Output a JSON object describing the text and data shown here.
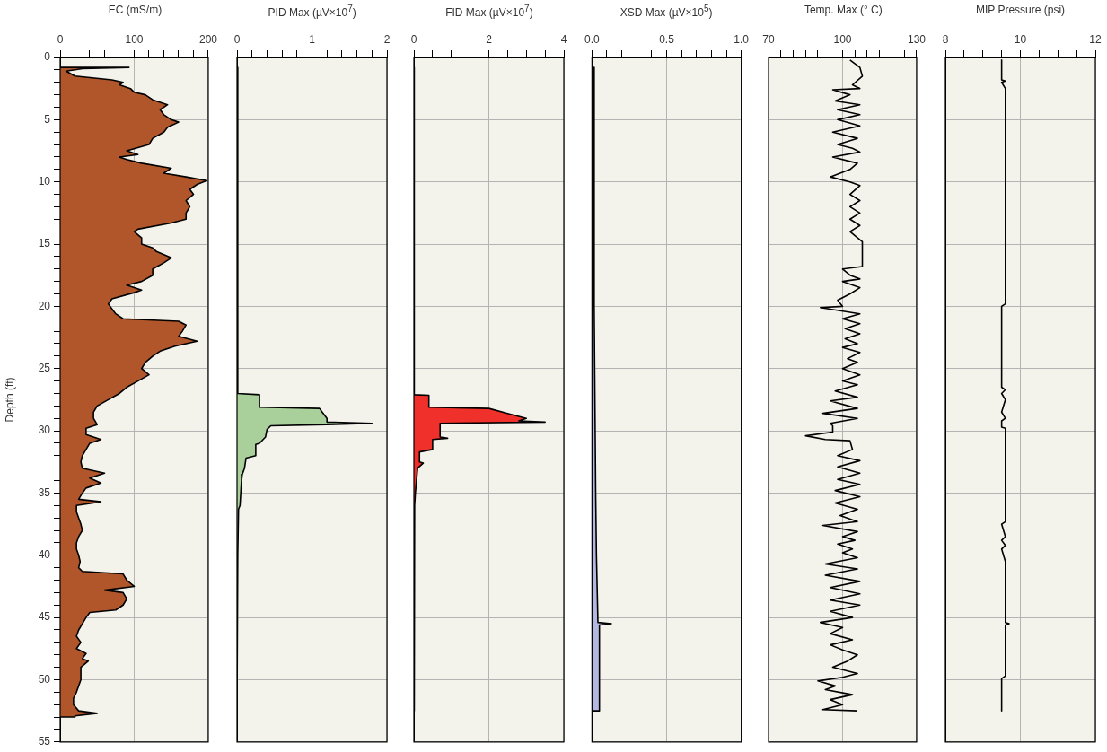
{
  "chart_data": [
    {
      "type": "area",
      "xlabel": "EC (mS/m)",
      "ylabel": "Depth (ft)",
      "grid": true,
      "xlim": [
        0,
        200
      ],
      "ylim": [
        55,
        0
      ],
      "xticks": [
        0,
        {
          "value": 20,
          "label": null
        },
        {
          "value": 40,
          "label": null
        },
        {
          "value": 60,
          "label": null
        },
        {
          "value": 80,
          "label": null
        },
        100,
        {
          "value": 120,
          "label": null
        },
        {
          "value": 140,
          "label": null
        },
        {
          "value": 160,
          "label": null
        },
        {
          "value": 180,
          "label": null
        },
        200
      ],
      "yticks": [
        0,
        {
          "value": 1,
          "label": null
        },
        {
          "value": 2,
          "label": null
        },
        {
          "value": 3,
          "label": null
        },
        {
          "value": 4,
          "label": null
        },
        5,
        {
          "value": 6,
          "label": null
        },
        {
          "value": 7,
          "label": null
        },
        {
          "value": 8,
          "label": null
        },
        {
          "value": 9,
          "label": null
        },
        10,
        {
          "value": 11,
          "label": null
        },
        {
          "value": 12,
          "label": null
        },
        {
          "value": 13,
          "label": null
        },
        {
          "value": 14,
          "label": null
        },
        15,
        {
          "value": 16,
          "label": null
        },
        {
          "value": 17,
          "label": null
        },
        {
          "value": 18,
          "label": null
        },
        {
          "value": 19,
          "label": null
        },
        20,
        {
          "value": 21,
          "label": null
        },
        {
          "value": 22,
          "label": null
        },
        {
          "value": 23,
          "label": null
        },
        {
          "value": 24,
          "label": null
        },
        25,
        {
          "value": 26,
          "label": null
        },
        {
          "value": 27,
          "label": null
        },
        {
          "value": 28,
          "label": null
        },
        {
          "value": 29,
          "label": null
        },
        30,
        {
          "value": 31,
          "label": null
        },
        {
          "value": 32,
          "label": null
        },
        {
          "value": 33,
          "label": null
        },
        {
          "value": 34,
          "label": null
        },
        35,
        {
          "value": 36,
          "label": null
        },
        {
          "value": 37,
          "label": null
        },
        {
          "value": 38,
          "label": null
        },
        {
          "value": 39,
          "label": null
        },
        40,
        {
          "value": 41,
          "label": null
        },
        {
          "value": 42,
          "label": null
        },
        {
          "value": 43,
          "label": null
        },
        {
          "value": 44,
          "label": null
        },
        45,
        {
          "value": 46,
          "label": null
        },
        {
          "value": 47,
          "label": null
        },
        {
          "value": 48,
          "label": null
        },
        {
          "value": 49,
          "label": null
        },
        50,
        {
          "value": 51,
          "label": null
        },
        {
          "value": 52,
          "label": null
        },
        {
          "value": 53,
          "label": null
        },
        {
          "value": 54,
          "label": null
        },
        55
      ],
      "series": [
        {
          "color": "#b0562a",
          "x": [
            0,
            93,
            30,
            8,
            20,
            70,
            85,
            80,
            95,
            100,
            115,
            125,
            145,
            135,
            140,
            150,
            160,
            145,
            140,
            125,
            120,
            90,
            105,
            80,
            90,
            110,
            150,
            140,
            170,
            198,
            185,
            175,
            180,
            170,
            175,
            170,
            170,
            150,
            105,
            100,
            110,
            110,
            125,
            130,
            150,
            140,
            125,
            125,
            110,
            90,
            110,
            100,
            70,
            65,
            70,
            75,
            85,
            160,
            170,
            165,
            160,
            185,
            155,
            135,
            125,
            115,
            110,
            120,
            105,
            90,
            80,
            65,
            50,
            45,
            45,
            50,
            35,
            35,
            55,
            40,
            35,
            30,
            28,
            30,
            60,
            40,
            55,
            35,
            30,
            25,
            55,
            22,
            22,
            25,
            28,
            30,
            25,
            22,
            22,
            25,
            27,
            25,
            30,
            85,
            90,
            100,
            60,
            85,
            90,
            85,
            75,
            40,
            35,
            30,
            25,
            22,
            28,
            22,
            35,
            30,
            38,
            28,
            28,
            25,
            22,
            18,
            18,
            25,
            50,
            20,
            20,
            0
          ],
          "values": [
            0.8,
            0.8,
            0.9,
            1.1,
            1.5,
            1.8,
            2.0,
            2.2,
            2.5,
            2.8,
            3.0,
            3.4,
            3.8,
            4.2,
            4.6,
            5.0,
            5.2,
            5.6,
            6.0,
            6.5,
            7.0,
            7.5,
            7.8,
            8.0,
            8.2,
            8.5,
            8.9,
            9.3,
            9.6,
            9.9,
            10.2,
            10.6,
            11.0,
            11.5,
            12.0,
            12.5,
            13.0,
            13.3,
            13.8,
            14.0,
            14.5,
            15.0,
            15.3,
            15.6,
            16.1,
            16.5,
            17.0,
            17.5,
            18.0,
            18.3,
            18.7,
            18.9,
            19.4,
            19.8,
            20.2,
            20.6,
            21.0,
            21.2,
            21.5,
            22.0,
            22.4,
            22.8,
            23.2,
            23.6,
            24.0,
            24.5,
            25.0,
            25.5,
            26.0,
            26.5,
            27.0,
            27.5,
            28.0,
            28.5,
            29.0,
            29.5,
            29.8,
            30.3,
            30.7,
            31.0,
            31.5,
            32.0,
            32.5,
            33.0,
            33.4,
            33.8,
            34.2,
            34.6,
            35.0,
            35.5,
            35.7,
            36.0,
            36.5,
            37.0,
            37.5,
            38.0,
            38.5,
            39.0,
            39.5,
            40.0,
            40.5,
            41.0,
            41.3,
            41.5,
            42.0,
            42.5,
            42.8,
            43.0,
            43.5,
            44.0,
            44.4,
            44.6,
            45.0,
            45.5,
            46.0,
            46.5,
            47.0,
            47.5,
            47.9,
            48.3,
            48.5,
            49.0,
            50.0,
            50.5,
            51.0,
            51.5,
            52.0,
            52.5,
            52.7,
            52.9,
            53.0,
            53.0
          ]
        }
      ]
    },
    {
      "type": "area",
      "xlabel": "PID Max (µV×10$^{7}$)",
      "grid": true,
      "tick_labels": "x",
      "xlim": [
        0,
        2
      ],
      "ylim": [
        55,
        0
      ],
      "xticks": [
        0,
        {
          "value": 0.2,
          "label": null
        },
        {
          "value": 0.4,
          "label": null
        },
        {
          "value": 0.6,
          "label": null
        },
        {
          "value": 0.8,
          "label": null
        },
        1,
        {
          "value": 1.2,
          "label": null
        },
        {
          "value": 1.4,
          "label": null
        },
        {
          "value": 1.6,
          "label": null
        },
        {
          "value": 1.8,
          "label": null
        },
        2
      ],
      "yticks": [
        0,
        5,
        10,
        15,
        20,
        25,
        30,
        35,
        40,
        45,
        50,
        55
      ],
      "series": [
        {
          "color": "#a9cf9b",
          "x": [
            0.01,
            0.01,
            0.3,
            0.3,
            1.1,
            1.15,
            1.2,
            1.2,
            1.8,
            1.2,
            0.45,
            0.4,
            0.38,
            0.3,
            0.25,
            0.25,
            0.12,
            0.1,
            0.07,
            0.06,
            0.05,
            0.04,
            0.02,
            0.01,
            0
          ],
          "values": [
            0.8,
            27.0,
            27.1,
            28.1,
            28.2,
            28.6,
            29.0,
            29.3,
            29.4,
            29.5,
            29.6,
            29.9,
            30.5,
            31.0,
            31.1,
            32.0,
            32.2,
            33.0,
            33.5,
            34.0,
            35.0,
            36.0,
            36.3,
            40.0,
            52.5
          ]
        }
      ]
    },
    {
      "type": "area",
      "xlabel": "FID Max (µV×10$^{7}$)",
      "grid": true,
      "tick_labels": "x",
      "xlim": [
        0,
        4
      ],
      "ylim": [
        55,
        0
      ],
      "xticks": [
        0,
        {
          "value": 0.5,
          "label": null
        },
        {
          "value": 1,
          "label": null
        },
        {
          "value": 1.5,
          "label": null
        },
        2,
        {
          "value": 2.5,
          "label": null
        },
        {
          "value": 3,
          "label": null
        },
        {
          "value": 3.5,
          "label": null
        },
        4
      ],
      "yticks": [
        0,
        5,
        10,
        15,
        20,
        25,
        30,
        35,
        40,
        45,
        50,
        55
      ],
      "series": [
        {
          "color": "#f0302a",
          "x": [
            0.01,
            0.01,
            0.4,
            0.4,
            2.0,
            2.5,
            3.0,
            2.8,
            3.5,
            0.7,
            0.7,
            0.9,
            0.5,
            0.5,
            0.15,
            0.15,
            0.25,
            0.1,
            0.07,
            0.04,
            0.02,
            0.01
          ],
          "values": [
            0.8,
            27.1,
            27.15,
            28.1,
            28.2,
            28.6,
            29.0,
            29.2,
            29.3,
            29.4,
            30.5,
            30.6,
            30.7,
            31.5,
            31.7,
            32.5,
            32.6,
            33.0,
            34.0,
            35.0,
            36.0,
            52.5
          ]
        }
      ]
    },
    {
      "type": "area",
      "xlabel": "XSD Max (µV×10$^{5}$)",
      "grid": true,
      "tick_labels": "x",
      "xlim": [
        0,
        1
      ],
      "ylim": [
        55,
        0
      ],
      "xticks": [
        {
          "value": 0,
          "label": "0.0"
        },
        {
          "value": 0.1,
          "label": null
        },
        {
          "value": 0.2,
          "label": null
        },
        {
          "value": 0.3,
          "label": null
        },
        {
          "value": 0.4,
          "label": null
        },
        0.5,
        {
          "value": 0.6,
          "label": null
        },
        {
          "value": 0.7,
          "label": null
        },
        {
          "value": 0.8,
          "label": null
        },
        {
          "value": 0.9,
          "label": null
        },
        {
          "value": 1,
          "label": "1.0"
        }
      ],
      "yticks": [
        0,
        5,
        10,
        15,
        20,
        25,
        30,
        35,
        40,
        45,
        50,
        55
      ],
      "series": [
        {
          "color": "#b4b8e0",
          "x": [
            0,
            0.01,
            0.015,
            0.025,
            0.03,
            0.04,
            0.13,
            0.05,
            0.05,
            0
          ],
          "values": [
            0.8,
            0.8,
            20,
            35,
            40,
            45.4,
            45.5,
            45.6,
            52.5,
            52.5
          ]
        }
      ]
    },
    {
      "type": "line",
      "xlabel": "Temp. Max (° C)",
      "grid": true,
      "tick_labels": "x",
      "xlim": [
        70,
        130
      ],
      "ylim": [
        55,
        0
      ],
      "xticks": [
        70,
        {
          "value": 75,
          "label": null
        },
        {
          "value": 80,
          "label": null
        },
        {
          "value": 85,
          "label": null
        },
        {
          "value": 90,
          "label": null
        },
        {
          "value": 95,
          "label": null
        },
        100,
        {
          "value": 105,
          "label": null
        },
        {
          "value": 110,
          "label": null
        },
        {
          "value": 115,
          "label": null
        },
        {
          "value": 120,
          "label": null
        },
        {
          "value": 125,
          "label": null
        },
        130
      ],
      "yticks": [
        0,
        5,
        10,
        15,
        20,
        25,
        30,
        35,
        40,
        45,
        50,
        55
      ],
      "series": [
        {
          "color": "#000000",
          "x": [
            103,
            107,
            108,
            104,
            107,
            96,
            103,
            97,
            107,
            98,
            107,
            98,
            107,
            96,
            106,
            98,
            104,
            107,
            96,
            106,
            103,
            95,
            103,
            107,
            103,
            107,
            103,
            107,
            103,
            107,
            103,
            108,
            108,
            100,
            103,
            107,
            100,
            107,
            103,
            98,
            100,
            91,
            107,
            100,
            107,
            101,
            107,
            101,
            106,
            100,
            107,
            102,
            106,
            100,
            107,
            100,
            106,
            97,
            106,
            95,
            106,
            92,
            106,
            95,
            96,
            96,
            85,
            93,
            103,
            104,
            98,
            107,
            98,
            107,
            98,
            107,
            97,
            107,
            97,
            106,
            99,
            106,
            92,
            106,
            100,
            105,
            98,
            104,
            100,
            106,
            93,
            106,
            93,
            107,
            95,
            107,
            95,
            107,
            95,
            104,
            91,
            100,
            95,
            104,
            95,
            100,
            106,
            102,
            96,
            106,
            100,
            90,
            97,
            93,
            104,
            95,
            100,
            92,
            106
          ],
          "values": [
            0.2,
            0.8,
            1.5,
            2.2,
            2.5,
            2.6,
            3.0,
            3.5,
            3.8,
            4.2,
            4.6,
            5.0,
            5.5,
            6.0,
            6.5,
            7.0,
            7.3,
            7.6,
            8.0,
            8.5,
            9.0,
            9.6,
            10.0,
            10.3,
            11.0,
            11.5,
            12.0,
            12.5,
            13.0,
            13.5,
            14.0,
            14.8,
            16.8,
            17.0,
            17.5,
            17.8,
            18.0,
            18.5,
            19.0,
            19.5,
            20.0,
            20.1,
            20.6,
            21.0,
            21.4,
            21.8,
            22.2,
            22.6,
            23.0,
            23.3,
            23.7,
            24.2,
            24.5,
            25.0,
            25.5,
            26.0,
            26.3,
            26.8,
            27.3,
            27.6,
            28.2,
            28.6,
            29.0,
            29.4,
            29.6,
            30.1,
            30.4,
            30.7,
            30.8,
            31.5,
            32.0,
            32.4,
            32.9,
            33.4,
            33.9,
            34.3,
            34.8,
            35.3,
            35.8,
            36.3,
            36.8,
            37.3,
            37.6,
            38.1,
            38.5,
            38.8,
            39.1,
            39.5,
            39.8,
            40.2,
            40.7,
            41.1,
            41.6,
            42.1,
            42.6,
            43.1,
            43.6,
            44.0,
            44.5,
            45.0,
            45.4,
            45.8,
            46.3,
            46.8,
            47.2,
            47.6,
            48.0,
            48.5,
            49.0,
            49.5,
            49.8,
            50.1,
            50.5,
            50.8,
            51.2,
            51.6,
            52.0,
            52.4,
            52.5
          ]
        }
      ]
    },
    {
      "type": "line",
      "xlabel": "MIP Pressure (psi)",
      "grid": true,
      "tick_labels": "x",
      "xlim": [
        8,
        12
      ],
      "ylim": [
        55,
        0
      ],
      "xticks": [
        8,
        {
          "value": 8.5,
          "label": null
        },
        {
          "value": 9,
          "label": null
        },
        {
          "value": 9.5,
          "label": null
        },
        10,
        {
          "value": 10.5,
          "label": null
        },
        {
          "value": 11,
          "label": null
        },
        {
          "value": 11.5,
          "label": null
        },
        12
      ],
      "yticks": [
        0,
        5,
        10,
        15,
        20,
        25,
        30,
        35,
        40,
        45,
        50,
        55
      ],
      "series": [
        {
          "color": "#000000",
          "x": [
            9.5,
            9.5,
            9.6,
            9.5,
            9.6,
            9.6,
            9.5,
            9.5,
            9.6,
            9.5,
            9.6,
            9.5,
            9.6,
            9.5,
            9.5,
            9.6,
            9.6,
            9.5,
            9.6,
            9.5,
            9.6,
            9.5,
            9.6,
            9.6,
            9.7,
            9.6,
            9.6,
            9.5,
            9.5
          ],
          "values": [
            0.2,
            1.8,
            1.9,
            2.0,
            2.5,
            19.8,
            20.0,
            26.5,
            26.7,
            27.0,
            27.5,
            28.5,
            29.0,
            29.2,
            29.7,
            29.8,
            37.3,
            37.5,
            38.5,
            38.8,
            39.2,
            39.5,
            40.5,
            45.4,
            45.5,
            45.6,
            49.7,
            49.9,
            52.5
          ]
        }
      ]
    }
  ]
}
